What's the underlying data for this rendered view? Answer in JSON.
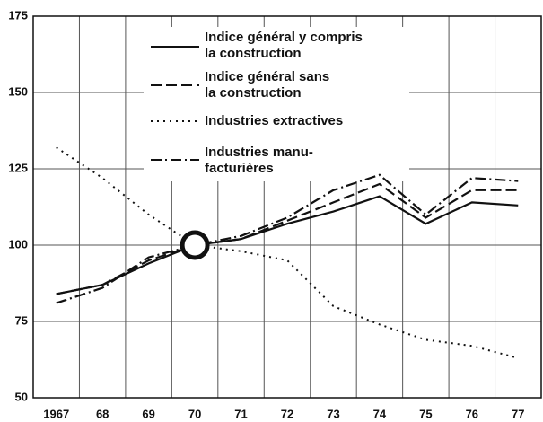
{
  "chart_data": {
    "type": "line",
    "categories": [
      "1967",
      "68",
      "69",
      "70",
      "71",
      "72",
      "73",
      "74",
      "75",
      "76",
      "77"
    ],
    "series": [
      {
        "name": "Indice général y compris\nla construction",
        "color": "#111111",
        "dash": "solid",
        "values": [
          84,
          87,
          94,
          100,
          102,
          107,
          111,
          116,
          107,
          114,
          113
        ]
      },
      {
        "name": "Indice général sans\nla construction",
        "color": "#111111",
        "dash": "dashed",
        "values": [
          84,
          87,
          95,
          100,
          102,
          108,
          114,
          120,
          109,
          118,
          118
        ]
      },
      {
        "name": "Industries extractives",
        "color": "#111111",
        "dash": "dotted",
        "values": [
          132,
          122,
          110,
          100,
          98,
          95,
          80,
          74,
          69,
          67,
          63
        ]
      },
      {
        "name": "Industries manu-\nfacturières",
        "color": "#111111",
        "dash": "dashdot",
        "values": [
          81,
          86,
          96,
          100,
          103,
          109,
          118,
          123,
          110,
          122,
          121
        ]
      }
    ],
    "ylim": [
      50,
      175
    ],
    "yticks": [
      50,
      75,
      100,
      125,
      150,
      175
    ],
    "grid": true
  }
}
